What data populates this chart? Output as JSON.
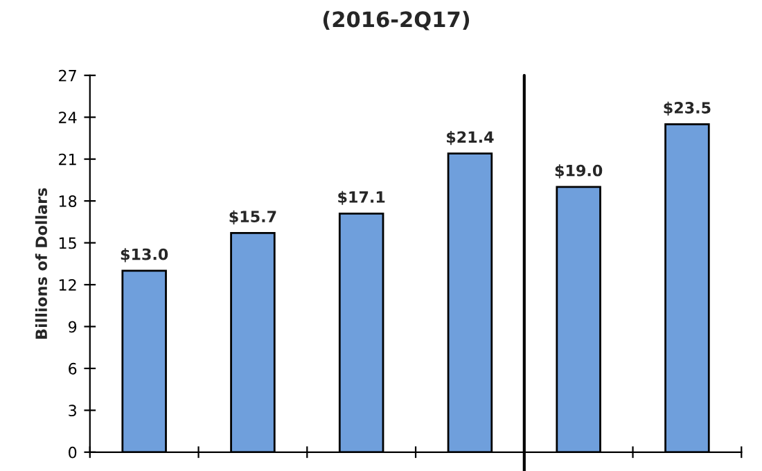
{
  "chart_data": {
    "type": "bar",
    "title": "(2016-2Q17)",
    "ylabel": "Billions of Dollars",
    "categories": [
      null,
      null,
      null,
      null,
      null,
      null
    ],
    "values": [
      13.0,
      15.7,
      17.1,
      21.4,
      19.0,
      23.5
    ],
    "value_labels": [
      "$13.0",
      "$15.7",
      "$17.1",
      "$21.4",
      "$19.0",
      "$23.5"
    ],
    "color": "#6f9fdc",
    "ylim": [
      0,
      27
    ],
    "yticks": [
      0,
      3,
      6,
      9,
      12,
      15,
      18,
      21,
      24,
      27
    ],
    "grid": false
  }
}
